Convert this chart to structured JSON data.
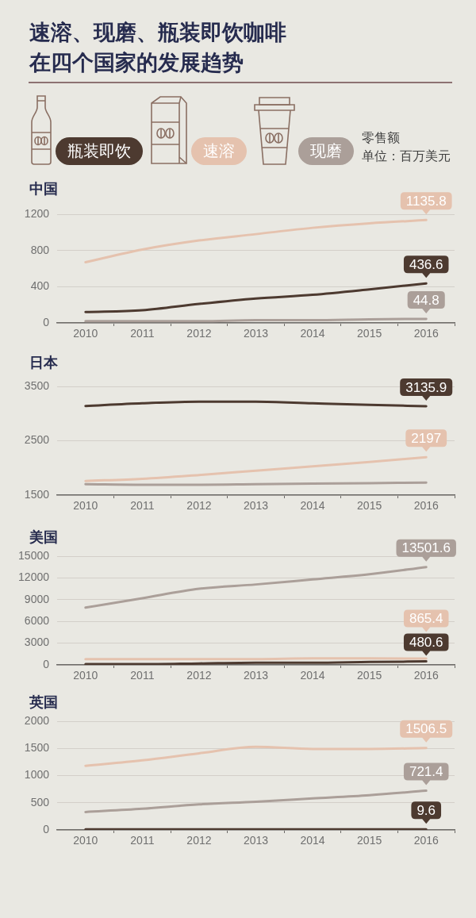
{
  "chart_data": [
    {
      "type": "line",
      "title": "速溶、现磨、瓶装即饮咖啡在四个国家的发展趋势",
      "subtitle": "中国",
      "annotations": [
        "零售额",
        "单位：百万美元"
      ],
      "legend": "top",
      "grid": "y",
      "categories": [
        "2010",
        "2011",
        "2012",
        "2013",
        "2014",
        "2015",
        "2016"
      ],
      "ylim": [
        0,
        1200
      ],
      "yticks": [
        0,
        400,
        800,
        1200
      ],
      "series": [
        {
          "name": "瓶装即饮",
          "color": "#4d3a30",
          "values": [
            120,
            140,
            210,
            270,
            310,
            370,
            436.6
          ],
          "value_labels": [
            null,
            null,
            null,
            null,
            null,
            null,
            "436.6"
          ]
        },
        {
          "name": "速溶",
          "color": "#e5c2ae",
          "values": [
            670,
            810,
            910,
            980,
            1050,
            1100,
            1135.8
          ],
          "value_labels": [
            null,
            null,
            null,
            null,
            null,
            null,
            "1135.8"
          ]
        },
        {
          "name": "现磨",
          "color": "#ab9f99",
          "values": [
            20,
            20,
            20,
            30,
            30,
            40,
            44.8
          ],
          "value_labels": [
            null,
            null,
            null,
            null,
            null,
            null,
            "44.8"
          ]
        }
      ]
    },
    {
      "type": "line",
      "title": "日本",
      "grid": "y",
      "categories": [
        "2010",
        "2011",
        "2012",
        "2013",
        "2014",
        "2015",
        "2016"
      ],
      "ylim": [
        1500,
        3500
      ],
      "yticks": [
        1500,
        2500,
        3500
      ],
      "series": [
        {
          "color": "#4d3a30",
          "values": [
            3140,
            3190,
            3220,
            3220,
            3190,
            3160,
            3135.9
          ],
          "value_labels": [
            null,
            null,
            null,
            null,
            null,
            null,
            "3135.9"
          ]
        },
        {
          "color": "#e5c2ae",
          "values": [
            1760,
            1800,
            1870,
            1950,
            2030,
            2110,
            2197
          ],
          "value_labels": [
            null,
            null,
            null,
            null,
            null,
            null,
            "2197"
          ]
        },
        {
          "color": "#ab9f99",
          "values": [
            1700,
            1690,
            1690,
            1700,
            1710,
            1720,
            1730
          ]
        }
      ]
    },
    {
      "type": "line",
      "title": "美国",
      "grid": "y",
      "categories": [
        "2010",
        "2011",
        "2012",
        "2013",
        "2014",
        "2015",
        "2016"
      ],
      "ylim": [
        0,
        15000
      ],
      "yticks": [
        0,
        3000,
        6000,
        9000,
        12000,
        15000
      ],
      "series": [
        {
          "color": "#4d3a30",
          "values": [
            100,
            100,
            200,
            300,
            300,
            400,
            480.6
          ],
          "value_labels": [
            null,
            null,
            null,
            null,
            null,
            null,
            "480.6"
          ]
        },
        {
          "color": "#e5c2ae",
          "values": [
            800,
            800,
            800,
            800,
            900,
            900,
            865.4
          ],
          "value_labels": [
            null,
            null,
            null,
            null,
            null,
            null,
            "865.4"
          ]
        },
        {
          "color": "#ab9f99",
          "values": [
            7900,
            9200,
            10500,
            11100,
            11800,
            12500,
            13501.6
          ],
          "value_labels": [
            null,
            null,
            null,
            null,
            null,
            null,
            "13501.6"
          ]
        }
      ]
    },
    {
      "type": "line",
      "title": "英国",
      "grid": "y",
      "categories": [
        "2010",
        "2011",
        "2012",
        "2013",
        "2014",
        "2015",
        "2016"
      ],
      "ylim": [
        0,
        2000
      ],
      "yticks": [
        0,
        500,
        1000,
        1500,
        2000
      ],
      "series": [
        {
          "color": "#4d3a30",
          "values": [
            10,
            10,
            10,
            10,
            10,
            10,
            9.6
          ],
          "value_labels": [
            null,
            null,
            null,
            null,
            null,
            null,
            "9.6"
          ]
        },
        {
          "color": "#e5c2ae",
          "values": [
            1180,
            1280,
            1410,
            1530,
            1490,
            1490,
            1506.5
          ],
          "value_labels": [
            null,
            null,
            null,
            null,
            null,
            null,
            "1506.5"
          ]
        },
        {
          "color": "#ab9f99",
          "values": [
            330,
            390,
            470,
            520,
            580,
            640,
            721.4
          ],
          "value_labels": [
            null,
            null,
            null,
            null,
            null,
            null,
            "721.4"
          ]
        }
      ]
    }
  ]
}
